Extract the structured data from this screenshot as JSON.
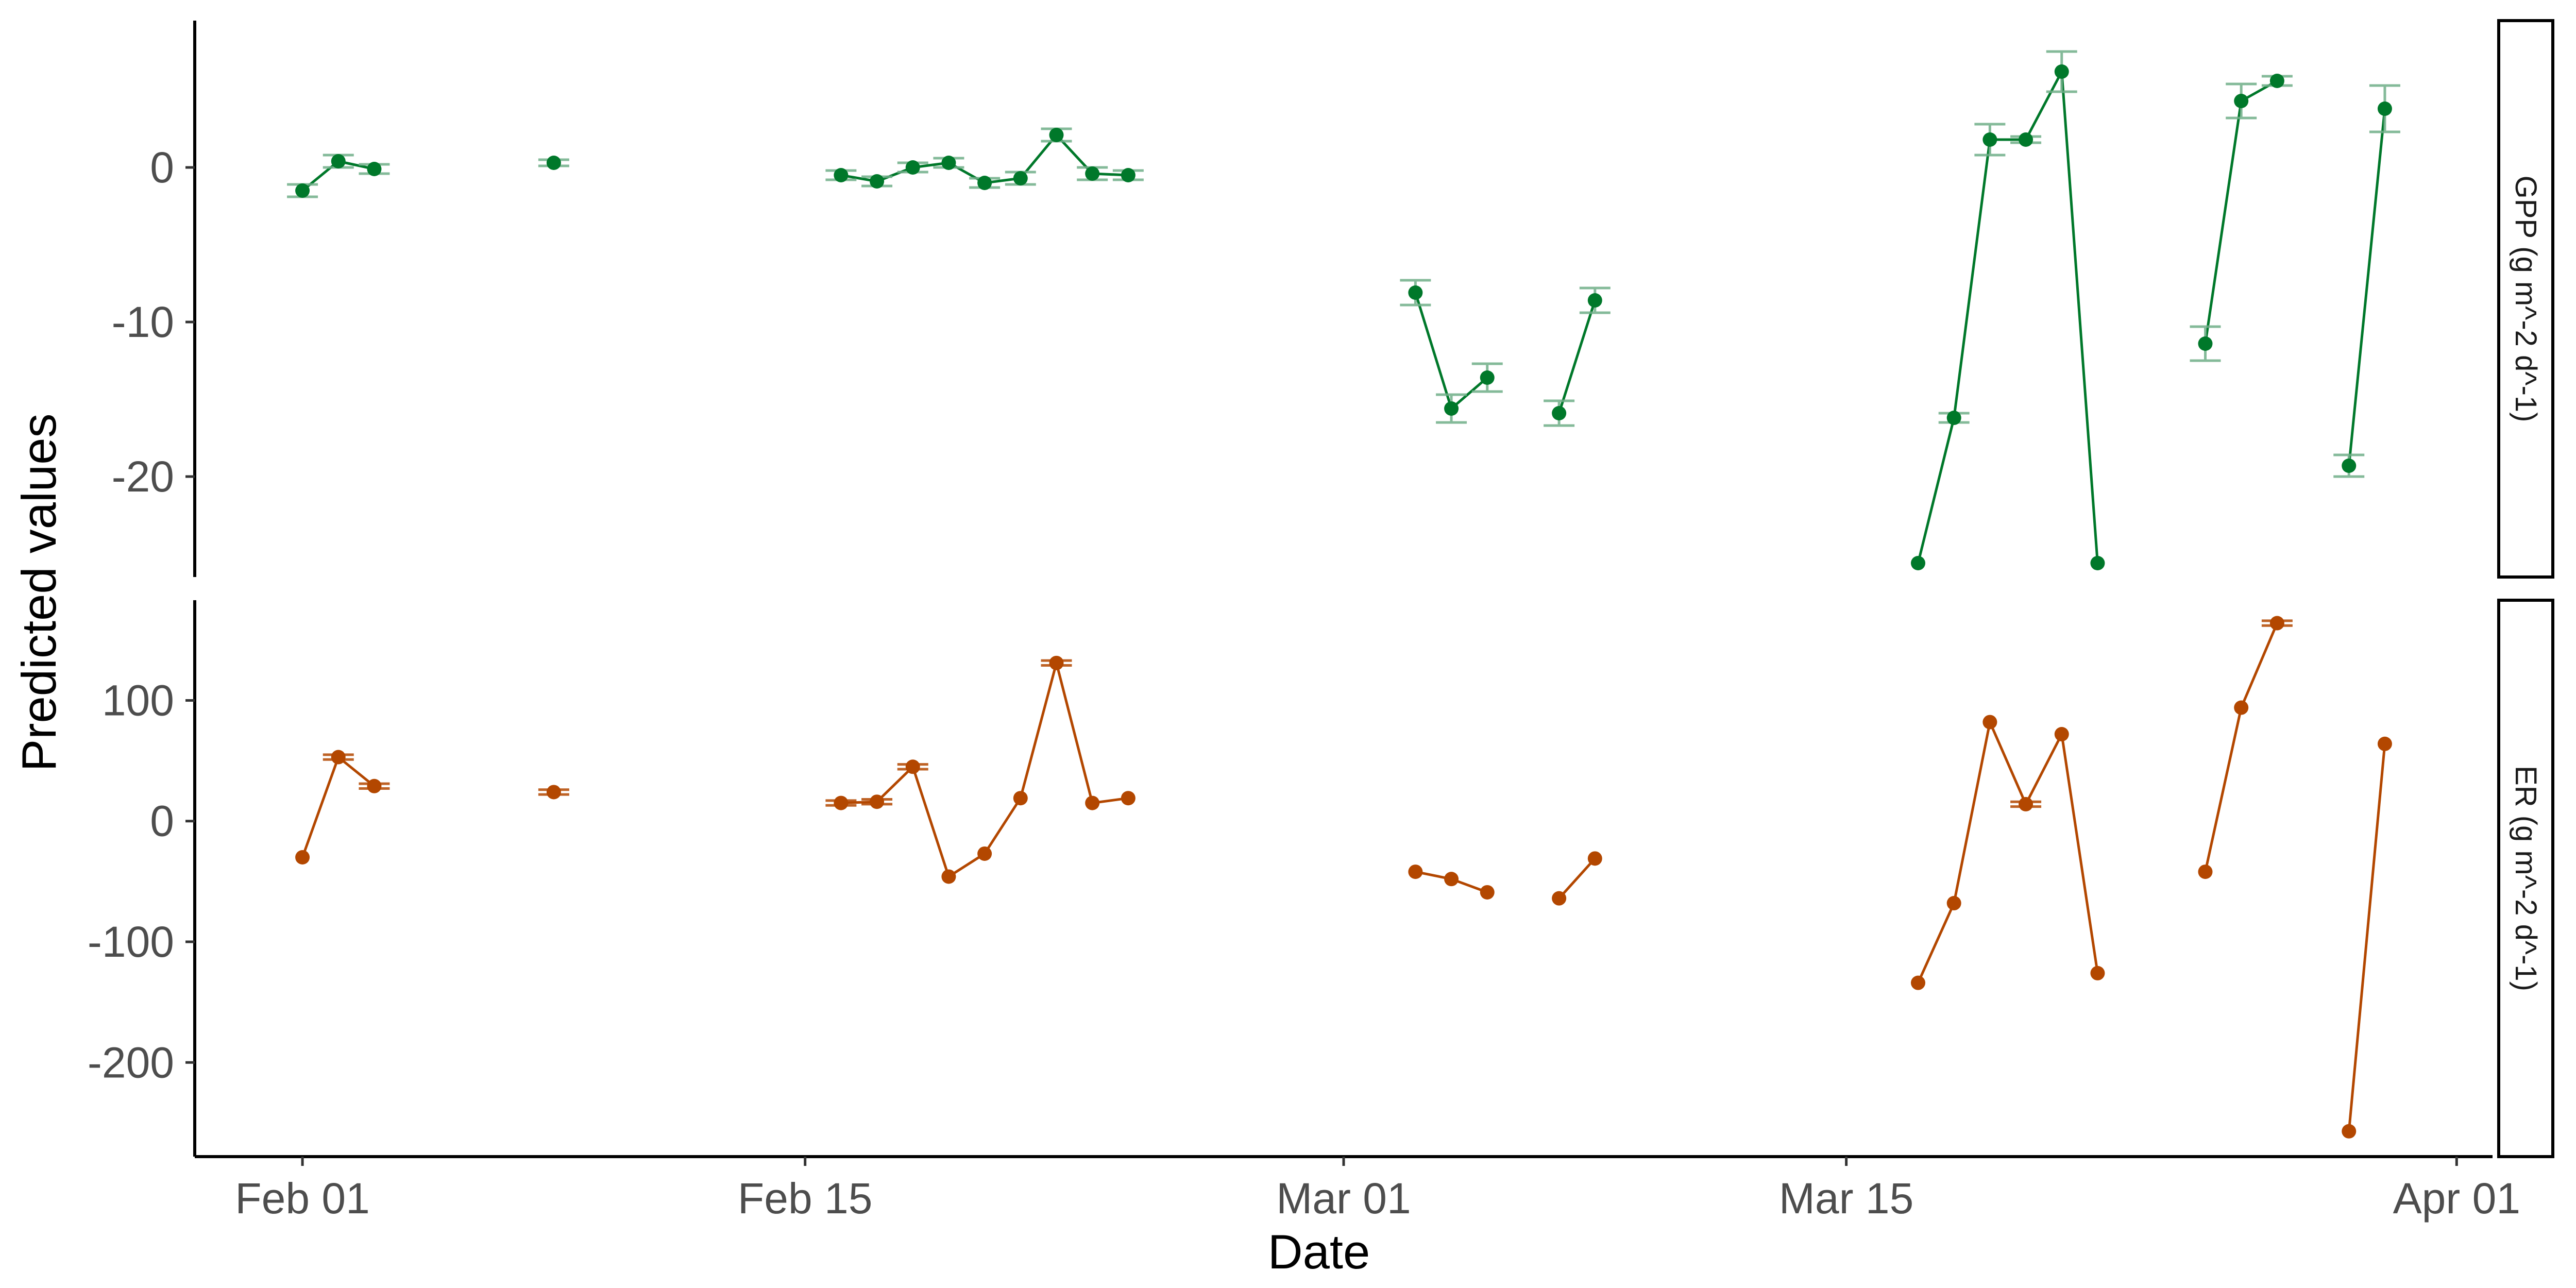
{
  "chart_data": {
    "type": "line",
    "xlabel": "Date",
    "ylabel": "Predicted values",
    "x_axis": {
      "type": "date",
      "range": [
        "2024-01-29",
        "2024-04-02"
      ],
      "ticks": [
        {
          "date": "2024-02-01",
          "label": "Feb 01"
        },
        {
          "date": "2024-02-15",
          "label": "Feb 15"
        },
        {
          "date": "2024-03-01",
          "label": "Mar 01"
        },
        {
          "date": "2024-03-15",
          "label": "Mar 15"
        },
        {
          "date": "2024-04-01",
          "label": "Apr 01"
        }
      ]
    },
    "grid": false,
    "legend": "none",
    "panels": [
      {
        "strip_label": "GPP (g m^-2 d^-1)",
        "color": "#00782a",
        "errorbar_color": "#6fae88",
        "ylim": [
          -26.5,
          9.5
        ],
        "yticks": [
          0,
          -10,
          -20
        ],
        "segments": [
          [
            {
              "x": "2024-02-01",
              "y": -1.5,
              "lo": -1.9,
              "hi": -1.1
            },
            {
              "x": "2024-02-02",
              "y": 0.4,
              "lo": 0.0,
              "hi": 0.8
            },
            {
              "x": "2024-02-03",
              "y": -0.1,
              "lo": -0.4,
              "hi": 0.2
            }
          ],
          [
            {
              "x": "2024-02-08",
              "y": 0.3,
              "lo": 0.1,
              "hi": 0.5
            }
          ],
          [
            {
              "x": "2024-02-16",
              "y": -0.5,
              "lo": -0.8,
              "hi": -0.2
            },
            {
              "x": "2024-02-17",
              "y": -0.9,
              "lo": -1.2,
              "hi": -0.6
            },
            {
              "x": "2024-02-18",
              "y": 0.0,
              "lo": -0.3,
              "hi": 0.3
            },
            {
              "x": "2024-02-19",
              "y": 0.3,
              "lo": 0.0,
              "hi": 0.6
            },
            {
              "x": "2024-02-20",
              "y": -1.0,
              "lo": -1.3,
              "hi": -0.7
            },
            {
              "x": "2024-02-21",
              "y": -0.7,
              "lo": -1.1,
              "hi": -0.3
            },
            {
              "x": "2024-02-22",
              "y": 2.1,
              "lo": 1.7,
              "hi": 2.5
            },
            {
              "x": "2024-02-23",
              "y": -0.4,
              "lo": -0.8,
              "hi": 0.0
            },
            {
              "x": "2024-02-24",
              "y": -0.5,
              "lo": -0.8,
              "hi": -0.2
            }
          ],
          [
            {
              "x": "2024-03-03",
              "y": -8.1,
              "lo": -8.9,
              "hi": -7.3
            },
            {
              "x": "2024-03-04",
              "y": -15.6,
              "lo": -16.5,
              "hi": -14.7
            },
            {
              "x": "2024-03-05",
              "y": -13.6,
              "lo": -14.5,
              "hi": -12.7
            }
          ],
          [
            {
              "x": "2024-03-07",
              "y": -15.9,
              "lo": -16.7,
              "hi": -15.1
            },
            {
              "x": "2024-03-08",
              "y": -8.6,
              "lo": -9.4,
              "hi": -7.8
            }
          ],
          [
            {
              "x": "2024-03-17",
              "y": -25.6
            },
            {
              "x": "2024-03-18",
              "y": -16.2,
              "lo": -16.5,
              "hi": -15.9
            },
            {
              "x": "2024-03-19",
              "y": 1.8,
              "lo": 0.8,
              "hi": 2.8
            },
            {
              "x": "2024-03-20",
              "y": 1.8,
              "lo": 1.6,
              "hi": 2.0
            },
            {
              "x": "2024-03-21",
              "y": 6.2,
              "lo": 4.9,
              "hi": 7.5
            },
            {
              "x": "2024-03-22",
              "y": -25.6
            }
          ],
          [
            {
              "x": "2024-03-25",
              "y": -11.4,
              "lo": -12.5,
              "hi": -10.3
            },
            {
              "x": "2024-03-26",
              "y": 4.3,
              "lo": 3.2,
              "hi": 5.4
            },
            {
              "x": "2024-03-27",
              "y": 5.6,
              "lo": 5.3,
              "hi": 5.9
            }
          ],
          [
            {
              "x": "2024-03-29",
              "y": -19.3,
              "lo": -20.0,
              "hi": -18.6
            },
            {
              "x": "2024-03-30",
              "y": 3.8,
              "lo": 2.3,
              "hi": 5.3
            }
          ]
        ]
      },
      {
        "strip_label": "ER (g m^-2 d^-1)",
        "color": "#b34700",
        "errorbar_color": "#b34700",
        "ylim": [
          -278,
          183
        ],
        "yticks": [
          100,
          0,
          -100,
          -200
        ],
        "segments": [
          [
            {
              "x": "2024-02-01",
              "y": -30
            },
            {
              "x": "2024-02-02",
              "y": 53,
              "lo": 51,
              "hi": 55
            },
            {
              "x": "2024-02-03",
              "y": 29,
              "lo": 27,
              "hi": 31
            }
          ],
          [
            {
              "x": "2024-02-08",
              "y": 24,
              "lo": 22,
              "hi": 26
            }
          ],
          [
            {
              "x": "2024-02-16",
              "y": 15,
              "lo": 13,
              "hi": 17
            },
            {
              "x": "2024-02-17",
              "y": 16,
              "lo": 14,
              "hi": 18
            },
            {
              "x": "2024-02-18",
              "y": 45,
              "lo": 43,
              "hi": 47
            },
            {
              "x": "2024-02-19",
              "y": -46
            },
            {
              "x": "2024-02-20",
              "y": -27
            },
            {
              "x": "2024-02-21",
              "y": 19
            },
            {
              "x": "2024-02-22",
              "y": 131,
              "lo": 129,
              "hi": 133
            },
            {
              "x": "2024-02-23",
              "y": 15
            },
            {
              "x": "2024-02-24",
              "y": 19
            }
          ],
          [
            {
              "x": "2024-03-03",
              "y": -42
            },
            {
              "x": "2024-03-04",
              "y": -48
            },
            {
              "x": "2024-03-05",
              "y": -59
            }
          ],
          [
            {
              "x": "2024-03-07",
              "y": -64
            },
            {
              "x": "2024-03-08",
              "y": -31
            }
          ],
          [
            {
              "x": "2024-03-17",
              "y": -134
            },
            {
              "x": "2024-03-18",
              "y": -68
            },
            {
              "x": "2024-03-19",
              "y": 82
            },
            {
              "x": "2024-03-20",
              "y": 14,
              "lo": 12,
              "hi": 16
            },
            {
              "x": "2024-03-21",
              "y": 72
            },
            {
              "x": "2024-03-22",
              "y": -126
            }
          ],
          [
            {
              "x": "2024-03-25",
              "y": -42
            },
            {
              "x": "2024-03-26",
              "y": 94
            },
            {
              "x": "2024-03-27",
              "y": 164,
              "lo": 162,
              "hi": 166
            }
          ],
          [
            {
              "x": "2024-03-29",
              "y": -257
            },
            {
              "x": "2024-03-30",
              "y": 64
            }
          ]
        ]
      }
    ]
  }
}
